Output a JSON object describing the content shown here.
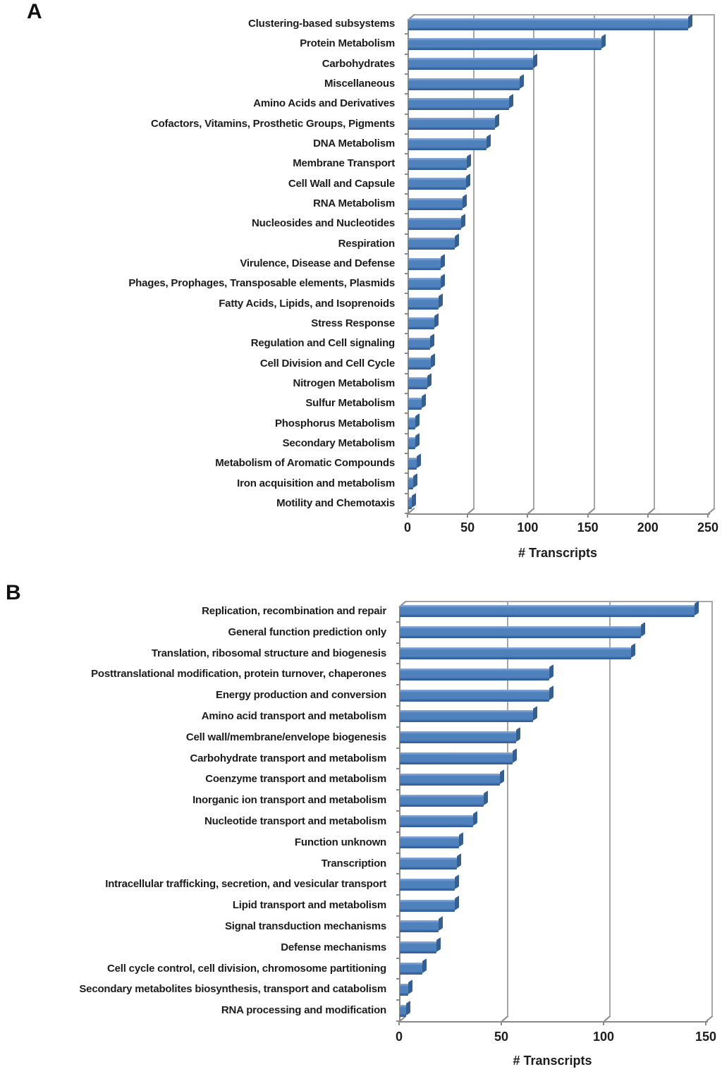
{
  "figure": {
    "description": "Two-panel horizontal bar chart figure of transcript functional categories"
  },
  "chart_data": [
    {
      "type": "bar",
      "orientation": "horizontal",
      "panel_label": "A",
      "title": "",
      "xlabel": "# Transcripts",
      "ylabel": "",
      "xlim": [
        0,
        250
      ],
      "x_ticks": [
        0,
        50,
        100,
        150,
        200,
        250
      ],
      "grid": true,
      "legend": "none",
      "bar_color": "#4f81bd",
      "categories": [
        "Clustering-based subsystems",
        "Protein Metabolism",
        "Carbohydrates",
        "Miscellaneous",
        "Amino Acids and Derivatives",
        "Cofactors, Vitamins, Prosthetic Groups, Pigments",
        "DNA Metabolism",
        "Membrane Transport",
        "Cell Wall and Capsule",
        "RNA Metabolism",
        "Nucleosides and Nucleotides",
        "Respiration",
        "Virulence, Disease and Defense",
        "Phages, Prophages, Transposable elements, Plasmids",
        "Fatty Acids, Lipids, and Isoprenoids",
        "Stress Response",
        "Regulation and Cell signaling",
        "Cell Division and Cell Cycle",
        "Nitrogen Metabolism",
        "Sulfur Metabolism",
        "Phosphorus Metabolism",
        "Secondary Metabolism",
        "Metabolism of Aromatic Compounds",
        "Iron acquisition and metabolism",
        "Motility and Chemotaxis"
      ],
      "values": [
        233,
        161,
        104,
        93,
        84,
        72,
        65,
        49,
        48,
        45,
        44,
        39,
        27,
        27,
        25,
        22,
        18,
        19,
        16,
        11,
        6,
        6,
        7,
        4,
        3
      ]
    },
    {
      "type": "bar",
      "orientation": "horizontal",
      "panel_label": "B",
      "title": "",
      "xlabel": "# Transcripts",
      "ylabel": "",
      "xlim": [
        0,
        150
      ],
      "x_ticks": [
        0,
        50,
        100,
        150
      ],
      "grid": true,
      "legend": "none",
      "bar_color": "#4f81bd",
      "categories": [
        "Replication, recombination and repair",
        "General function prediction only",
        "Translation, ribosomal structure and biogenesis",
        "Posttranslational modification, protein turnover, chaperones",
        "Energy production and conversion",
        "Amino acid transport and metabolism",
        "Cell wall/membrane/envelope biogenesis",
        "Carbohydrate transport and metabolism",
        "Coenzyme transport and metabolism",
        "Inorganic ion transport and metabolism",
        "Nucleotide transport and metabolism",
        "Function unknown",
        "Transcription",
        "Intracellular trafficking, secretion, and vesicular transport",
        "Lipid transport and metabolism",
        "Signal transduction mechanisms",
        "Defense mechanisms",
        "Cell cycle control, cell division, chromosome partitioning",
        "Secondary metabolites biosynthesis, transport and catabolism",
        "RNA processing and modification"
      ],
      "values": [
        144,
        118,
        113,
        73,
        73,
        65,
        57,
        55,
        49,
        41,
        36,
        29,
        28,
        27,
        27,
        19,
        18,
        11,
        4,
        3
      ]
    }
  ],
  "colors": {
    "bar_main": "#4f81bd",
    "bar_highlight": "#89aad6",
    "bar_shadow": "#2c5d98",
    "bar_end_cap": "#365f91",
    "gridline": "#a6a6a6",
    "axis": "#8a8a8a",
    "text": "#1c1c1c"
  }
}
